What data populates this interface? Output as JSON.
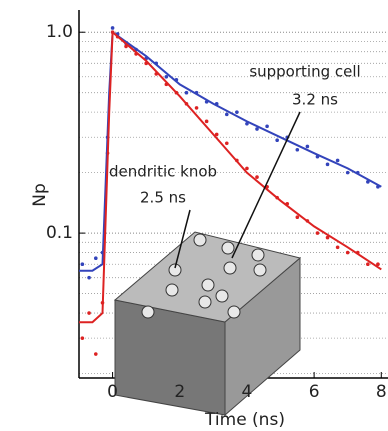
{
  "chart_data": {
    "type": "line",
    "xlabel": "Time (ns)",
    "ylabel": "Np",
    "log_y": true,
    "grid": true,
    "xlim": [
      -1,
      8.2
    ],
    "ylim": [
      0.019,
      1.29
    ],
    "xticks": [
      0,
      2,
      4,
      6,
      8
    ],
    "yticks": [
      {
        "value": 1,
        "label": "1.0"
      },
      0.1
    ],
    "yminorticks": [
      0.02,
      0.03,
      0.04,
      0.05,
      0.06,
      0.07,
      0.08,
      0.09,
      0.2,
      0.3,
      0.4,
      0.5,
      0.6,
      0.7,
      0.8,
      0.9
    ],
    "annotations": [
      "supporting cell",
      "3.2 ns",
      "dendritic knob",
      "2.5 ns"
    ],
    "points": [
      {
        "color": "#3344bb",
        "x": [
          -0.9,
          -0.7,
          -0.5,
          -0.3,
          -0.15,
          0,
          0.15,
          0.4,
          0.7,
          1,
          1.3,
          1.6,
          1.9,
          2.2,
          2.5,
          2.8,
          3.1,
          3.4,
          3.7,
          4,
          4.3,
          4.6,
          4.9,
          5.2,
          5.5,
          5.8,
          6.1,
          6.4,
          6.7,
          7,
          7.3,
          7.6,
          7.9
        ],
        "values": [
          0.07,
          0.06,
          0.075,
          0.08,
          0.3,
          1.05,
          0.98,
          0.88,
          0.82,
          0.74,
          0.7,
          0.6,
          0.58,
          0.5,
          0.5,
          0.45,
          0.44,
          0.39,
          0.4,
          0.35,
          0.33,
          0.34,
          0.29,
          0.3,
          0.26,
          0.27,
          0.24,
          0.22,
          0.23,
          0.2,
          0.2,
          0.18,
          0.17
        ]
      },
      {
        "color": "#dd2222",
        "x": [
          -0.9,
          -0.7,
          -0.5,
          -0.3,
          -0.15,
          0,
          0.15,
          0.4,
          0.7,
          1,
          1.3,
          1.6,
          1.9,
          2.2,
          2.5,
          2.8,
          3.1,
          3.4,
          3.7,
          4,
          4.3,
          4.6,
          4.9,
          5.2,
          5.5,
          5.8,
          6.1,
          6.4,
          6.7,
          7,
          7.3,
          7.6,
          7.9
        ],
        "values": [
          0.03,
          0.04,
          0.025,
          0.045,
          0.25,
          1.0,
          0.95,
          0.85,
          0.78,
          0.7,
          0.62,
          0.55,
          0.5,
          0.44,
          0.42,
          0.36,
          0.31,
          0.28,
          0.23,
          0.21,
          0.19,
          0.17,
          0.15,
          0.14,
          0.12,
          0.115,
          0.1,
          0.095,
          0.085,
          0.08,
          0.08,
          0.07,
          0.07
        ]
      }
    ],
    "x": [
      -1,
      -0.6,
      -0.3,
      -0.1,
      0,
      1,
      2,
      3,
      4,
      5,
      6,
      7,
      8
    ],
    "series": [
      {
        "color": "#3344bb",
        "values": [
          0.065,
          0.065,
          0.07,
          0.5,
          1.0,
          0.76,
          0.55,
          0.44,
          0.36,
          0.3,
          0.25,
          0.21,
          0.17
        ]
      },
      {
        "color": "#dd2222",
        "values": [
          0.036,
          0.036,
          0.04,
          0.4,
          1.0,
          0.72,
          0.48,
          0.31,
          0.2,
          0.145,
          0.108,
          0.085,
          0.066
        ]
      }
    ]
  }
}
